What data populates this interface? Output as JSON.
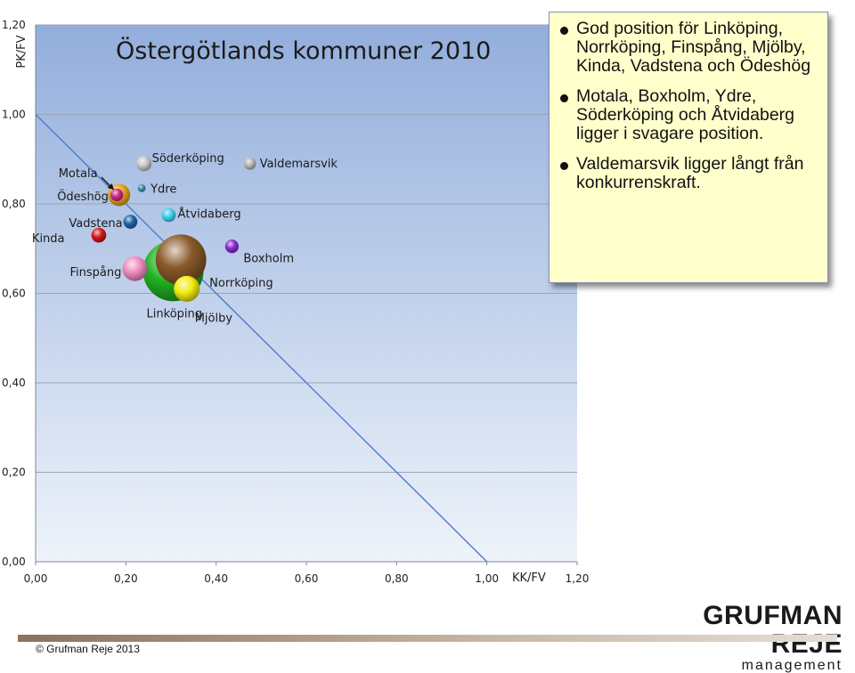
{
  "chart_data": {
    "type": "bubble",
    "title": "Östergötlands kommuner 2010",
    "xlabel": "KK/FV",
    "ylabel": "PK/FV",
    "xlim": [
      0,
      1.2
    ],
    "ylim": [
      0,
      1.2
    ],
    "x_ticks": [
      "0,00",
      "0,20",
      "0,40",
      "0,60",
      "0,80",
      "1,00",
      "1,20"
    ],
    "y_ticks": [
      "0,00",
      "0,20",
      "0,40",
      "0,60",
      "0,80",
      "1,00",
      "1,20"
    ],
    "grid": "horizontal",
    "reference_line": {
      "from": [
        0,
        1
      ],
      "to": [
        1,
        0
      ]
    },
    "points": [
      {
        "name": "Motala",
        "x": 0.185,
        "y": 0.82,
        "size": 4,
        "color": "#e8a317",
        "label_pos": "left-arrow"
      },
      {
        "name": "Ödeshög",
        "x": 0.18,
        "y": 0.82,
        "size": 1.3,
        "color": "#c8288e",
        "label_pos": "left"
      },
      {
        "name": "Vadstena",
        "x": 0.21,
        "y": 0.76,
        "size": 1.6,
        "color": "#1f63a8",
        "label_pos": "left"
      },
      {
        "name": "Kinda",
        "x": 0.14,
        "y": 0.73,
        "size": 1.8,
        "color": "#d01818",
        "label_pos": "left"
      },
      {
        "name": "Finspång",
        "x": 0.22,
        "y": 0.655,
        "size": 5,
        "color": "#f28cc0",
        "label_pos": "left"
      },
      {
        "name": "Söderköping",
        "x": 0.24,
        "y": 0.89,
        "size": 1.9,
        "color": "#c8c8c8",
        "label_pos": "right"
      },
      {
        "name": "Ydre",
        "x": 0.235,
        "y": 0.835,
        "size": 0.5,
        "color": "#3a8aa8",
        "label_pos": "right"
      },
      {
        "name": "Åtvidaberg",
        "x": 0.295,
        "y": 0.775,
        "size": 1.6,
        "color": "#3ed0f0",
        "label_pos": "right"
      },
      {
        "name": "Valdemarsvik",
        "x": 0.475,
        "y": 0.89,
        "size": 1.2,
        "color": "#b8b8b8",
        "label_pos": "right"
      },
      {
        "name": "Boxholm",
        "x": 0.435,
        "y": 0.705,
        "size": 1.5,
        "color": "#8a2ad0",
        "label_pos": "right-below"
      },
      {
        "name": "Linköping",
        "x": 0.305,
        "y": 0.65,
        "size": 30,
        "color": "#22b322",
        "label_pos": "below-left"
      },
      {
        "name": "Norrköping",
        "x": 0.322,
        "y": 0.675,
        "size": 21,
        "color": "#8a5a2a",
        "label_pos": "right-below"
      },
      {
        "name": "Mjölby",
        "x": 0.335,
        "y": 0.61,
        "size": 5.5,
        "color": "#f2ec10",
        "label_pos": "below-right"
      }
    ]
  },
  "infobox": {
    "bullets": [
      "God position för Linköping, Norrköping, Finspång, Mjölby, Kinda, Vadstena och Ödeshög",
      "Motala, Boxholm, Ydre, Söderköping och Åtvidaberg ligger i svagare position.",
      "Valdemarsvik ligger långt från konkurrenskraft."
    ]
  },
  "logo": {
    "main": "GRUFMAN REJE",
    "sub": "management"
  },
  "footer": {
    "copyright": "© Grufman Reje 2013"
  },
  "colors": {
    "plot_top": "#93aedc",
    "plot_bottom": "#eef3fa",
    "grid": "#9aa4b6",
    "line": "#4c7cc8"
  }
}
